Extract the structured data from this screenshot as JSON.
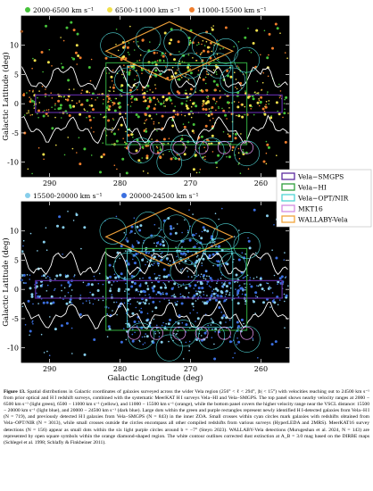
{
  "chart_data": [
    {
      "type": "scatter",
      "panel": "top",
      "xlabel": "",
      "ylabel": "Galactic Latitude (deg)",
      "xlim": [
        294,
        256
      ],
      "ylim": [
        -12.5,
        15
      ],
      "x_ticks": [
        290,
        280,
        270,
        260
      ],
      "y_ticks": [
        10,
        5,
        0,
        -5,
        -10
      ],
      "background": "#000000",
      "legend": [
        {
          "label": "2000-6500 km s⁻¹",
          "color": "#46c23a"
        },
        {
          "label": "6500-11000 km s⁻¹",
          "color": "#f2e14c"
        },
        {
          "label": "11000-15500 km s⁻¹",
          "color": "#ef7d2c"
        }
      ]
    },
    {
      "type": "scatter",
      "panel": "bottom",
      "xlabel": "Galactic Longitude (deg)",
      "ylabel": "Galactic Latitude (deg)",
      "xlim": [
        294,
        256
      ],
      "ylim": [
        -12.5,
        15
      ],
      "x_ticks": [
        290,
        280,
        270,
        260
      ],
      "y_ticks": [
        10,
        5,
        0,
        -5,
        -10
      ],
      "background": "#000000",
      "legend": [
        {
          "label": "15500-20000 km s⁻¹",
          "color": "#87ceeb"
        },
        {
          "label": "20000-24500 km s⁻¹",
          "color": "#3b6fe0"
        }
      ]
    }
  ],
  "survey_legend": [
    {
      "label": "Vela−SMGPS",
      "color": "#5b2a9e"
    },
    {
      "label": "Vela−HI",
      "color": "#2e9e3b"
    },
    {
      "label": "Vela−OPT/NIR",
      "color": "#4fd4d4"
    },
    {
      "label": "MKT16",
      "color": "#d48be0"
    },
    {
      "label": "WALLABY-Vela",
      "color": "#f2a33a"
    }
  ],
  "caption": {
    "label": "Figure 13.",
    "text": "Spatial distributions in Galactic coordinates of galaxies surveyed across the wider Vela region (256° < ℓ < 294°, |b| < 15°) with velocities reaching out to 24500 km s⁻¹ from prior optical and H I redshift surveys, combined with the systematic MeerKAT H I surveys Vela−HI and Vela−SMGPS. The top panel shows nearby velocity ranges at 2000 − 6500 km s⁻¹ (light green), 6500 − 11000 km s⁻¹ (yellow), and 11000 − 15500 km s⁻¹ (orange), while the bottom panel covers the higher velocity range near the VSCL distance: 15500 − 20000 km s⁻¹ (light blue), and 20000 − 24500 km s⁻¹ (dark blue). Large dots within the green and purple rectangles represent newly identified H I-detected galaxies from Vela−H I (N = 719), and previously detected H I galaxies from Vela−SMGPS (N = 843) in the inner ZOA. Small crosses within cyan circles mark galaxies with redshifts obtained from Vela−OPT/NIR (N = 3013), while small crosses outside the circles encompass all other compiled redshifts from various surveys (HyperLEDA and 2MRS). MeerKAT16 survey detections (N = 156) appear as small dots within the six light purple circles around b = −7° (Steyn 2023). WALLABY-Vela detections (Murugeshan et al. 2024, N = 143) are represented by open square symbols within the orange diamond-shaped region. The white contour outlines corrected dust extinction at A_B = 3.0 mag based on the DIRBE maps (Schlegel et al. 1998; Schlafly & Finkbeiner 2011)."
  }
}
